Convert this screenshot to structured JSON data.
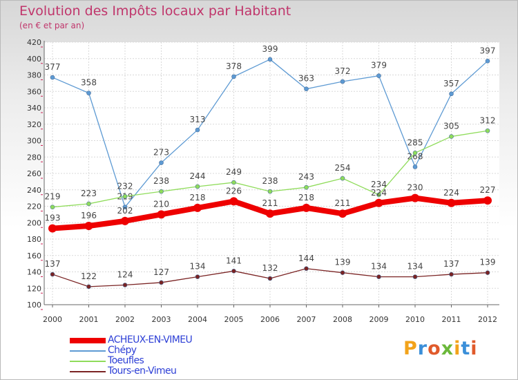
{
  "title": "Evolution des Impôts locaux par Habitant",
  "subtitle": "(en € et par an)",
  "logo_text": "Proxiti",
  "chart_data": {
    "type": "line",
    "x": [
      "2000",
      "2001",
      "2002",
      "2003",
      "2004",
      "2005",
      "2006",
      "2007",
      "2008",
      "2009",
      "2010",
      "2011",
      "2012"
    ],
    "ylim": [
      100,
      420
    ],
    "y_ticks": [
      100,
      120,
      140,
      160,
      180,
      200,
      220,
      240,
      260,
      280,
      300,
      320,
      340,
      360,
      380,
      400,
      420
    ],
    "grid": true,
    "legend_placement": "bottom-left",
    "series": [
      {
        "name": "ACHEUX-EN-VIMEU",
        "color": "#ee0000",
        "values": [
          193,
          196,
          202,
          210,
          218,
          226,
          211,
          218,
          211,
          224,
          230,
          224,
          227
        ]
      },
      {
        "name": "Chépy",
        "color": "#5d9ad3",
        "values": [
          377,
          358,
          219,
          273,
          313,
          378,
          399,
          363,
          372,
          379,
          268,
          357,
          397
        ]
      },
      {
        "name": "Toeufles",
        "color": "#8fdc5a",
        "values": [
          219,
          223,
          232,
          238,
          244,
          249,
          238,
          243,
          254,
          234,
          285,
          305,
          312
        ]
      },
      {
        "name": "Tours-en-Vimeu",
        "color": "#7a2323",
        "values": [
          137,
          122,
          124,
          127,
          134,
          141,
          132,
          144,
          139,
          134,
          134,
          137,
          139
        ]
      }
    ]
  }
}
